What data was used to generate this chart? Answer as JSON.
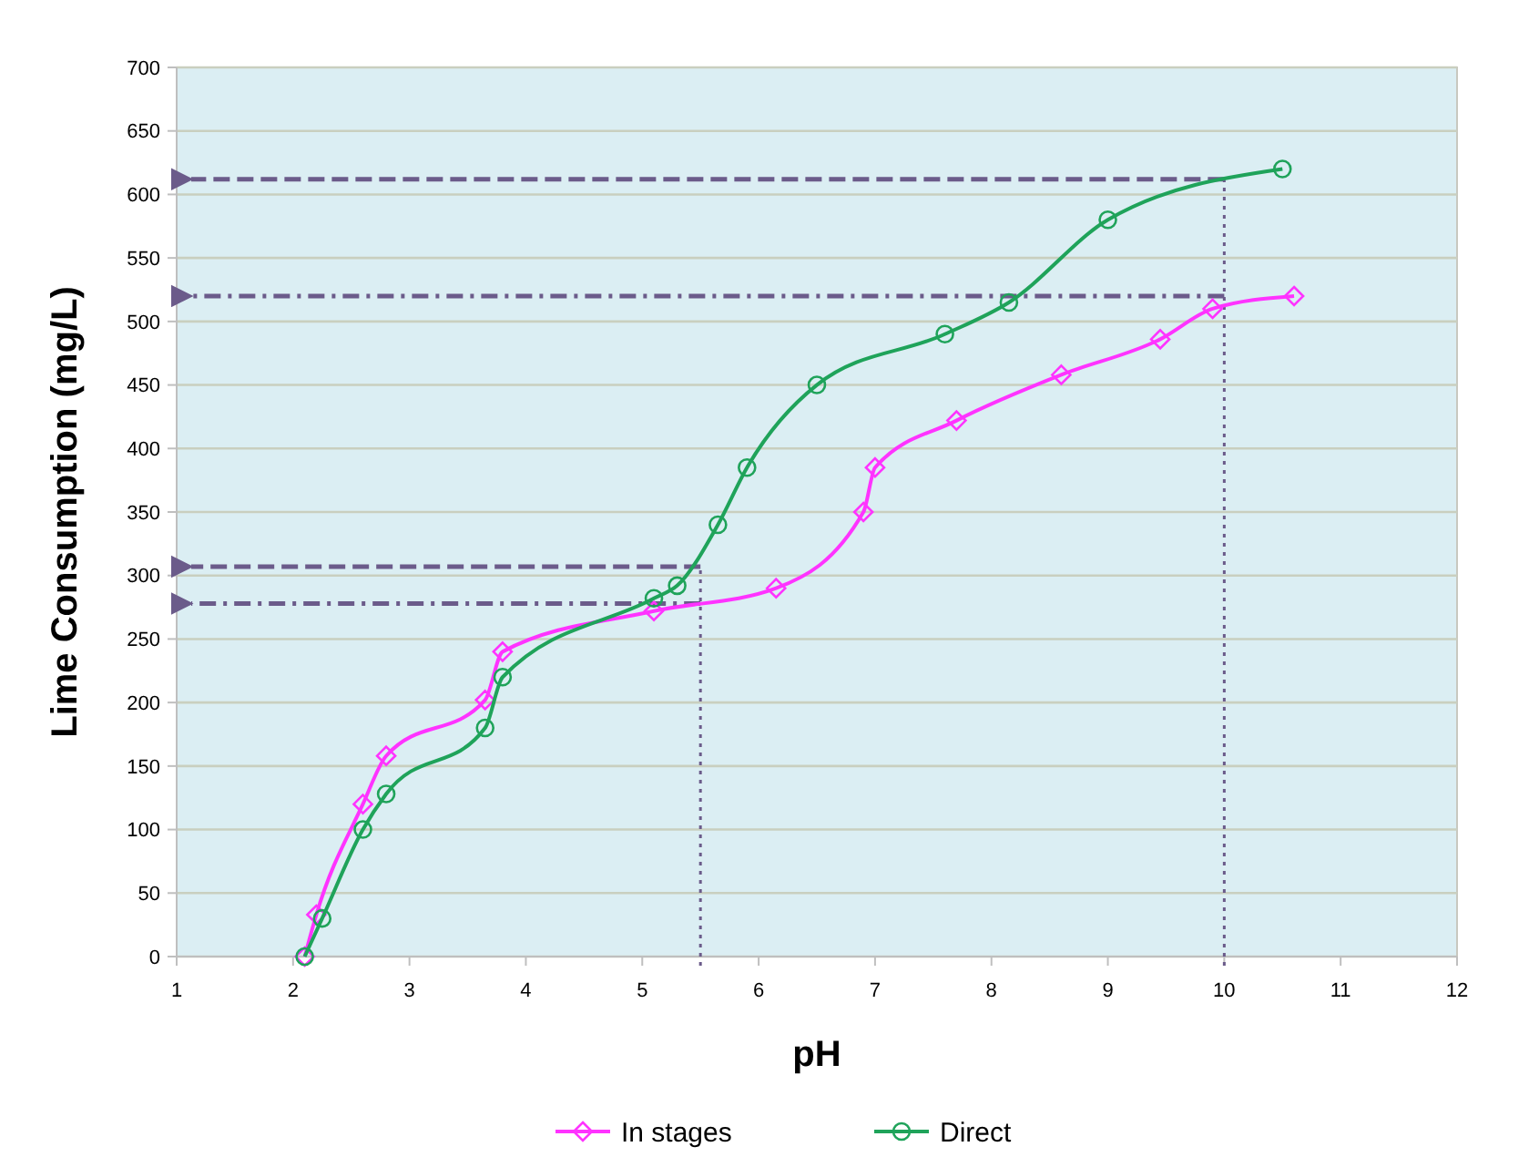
{
  "chart_data": {
    "type": "line",
    "xlabel": "pH",
    "ylabel": "Lime Consumption (mg/L)",
    "xlim": [
      1,
      12
    ],
    "xticks": [
      1,
      2,
      3,
      4,
      5,
      6,
      7,
      8,
      9,
      10,
      11,
      12
    ],
    "ylim": [
      0,
      700
    ],
    "yticks": [
      0,
      50,
      100,
      150,
      200,
      250,
      300,
      350,
      400,
      450,
      500,
      550,
      600,
      650,
      700
    ],
    "grid": "y",
    "legend": "bottom",
    "series": [
      {
        "name": "In stages",
        "color": "#ff33ff",
        "marker": "diamond",
        "x": [
          2.1,
          2.2,
          2.6,
          2.8,
          3.65,
          3.8,
          5.1,
          6.15,
          6.9,
          7.0,
          7.7,
          8.6,
          9.45,
          9.9,
          10.6
        ],
        "values": [
          0,
          33,
          120,
          158,
          202,
          240,
          272,
          290,
          350,
          385,
          422,
          458,
          486,
          510,
          520
        ]
      },
      {
        "name": "Direct",
        "color": "#1fa35a",
        "marker": "circle",
        "x": [
          2.1,
          2.25,
          2.6,
          2.8,
          3.65,
          3.8,
          5.1,
          5.3,
          5.65,
          5.9,
          6.5,
          7.6,
          8.15,
          9.0,
          10.5
        ],
        "values": [
          0,
          30,
          100,
          128,
          180,
          220,
          282,
          292,
          340,
          385,
          450,
          490,
          515,
          580,
          620
        ]
      }
    ],
    "ref_lines": [
      {
        "axis": "y",
        "value": 612,
        "line_style": "dashed",
        "color": "#6b5b8a"
      },
      {
        "axis": "y",
        "value": 520,
        "line_style": "dashdot",
        "color": "#6b5b8a"
      },
      {
        "axis": "y",
        "value": 307,
        "line_style": "dashed",
        "color": "#6b5b8a"
      },
      {
        "axis": "y",
        "value": 278,
        "line_style": "dashdot",
        "color": "#6b5b8a"
      },
      {
        "axis": "x",
        "value": 5.5,
        "line_style": "dotted",
        "color": "#6b5b8a"
      },
      {
        "axis": "x",
        "value": 10,
        "line_style": "dotted",
        "color": "#6b5b8a"
      }
    ]
  }
}
